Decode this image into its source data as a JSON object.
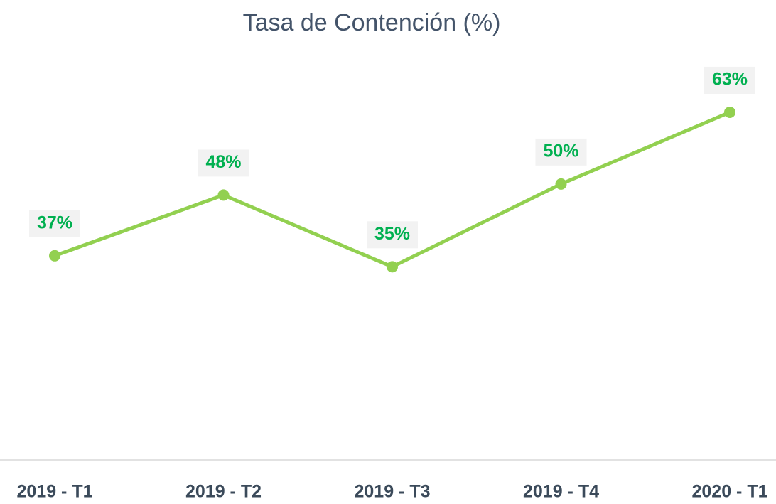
{
  "chart_data": {
    "type": "line",
    "title": "Tasa de Contención (%)",
    "categories": [
      "2019 - T1",
      "2019 - T2",
      "2019 - T3",
      "2019 - T4",
      "2020 - T1"
    ],
    "values": [
      37,
      48,
      35,
      50,
      63
    ],
    "value_labels": [
      "37%",
      "48%",
      "35%",
      "50%",
      "63%"
    ],
    "color": "#92d050",
    "label_color": "#00b050",
    "ylim": [
      0,
      80
    ]
  }
}
